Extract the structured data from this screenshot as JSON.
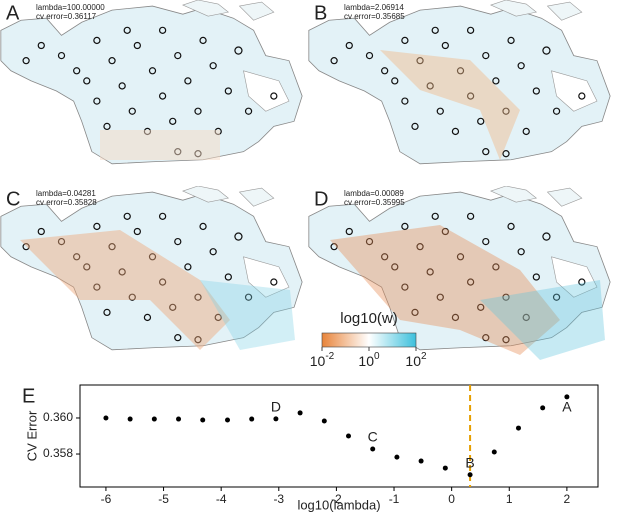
{
  "panels": [
    {
      "label": "A",
      "lambda_text": "lambda=100.00000",
      "cv_text": "cv error=0.36117"
    },
    {
      "label": "B",
      "lambda_text": "lambda=2.06914",
      "cv_text": "cv error=0.35685"
    },
    {
      "label": "C",
      "lambda_text": "lambda=0.04281",
      "cv_text": "cv error=0.35828"
    },
    {
      "label": "D",
      "lambda_text": "lambda=0.00089",
      "cv_text": "cv error=0.35995"
    }
  ],
  "colorbar": {
    "title": "log10(w)",
    "ticks": [
      {
        "base": "10",
        "exp": "-2"
      },
      {
        "base": "10",
        "exp": "0"
      },
      {
        "base": "10",
        "exp": "2"
      }
    ],
    "colors": [
      "#e8843a",
      "#ffffff",
      "#3cc0dc"
    ]
  },
  "chart_data": {
    "type": "scatter",
    "panel_label": "E",
    "x_label": "log10(lambda)",
    "y_label": "CV Error",
    "x": [
      -6,
      -5.58,
      -5.16,
      -4.74,
      -4.32,
      -3.89,
      -3.47,
      -3.05,
      -2.63,
      -2.21,
      -1.79,
      -1.37,
      -0.95,
      -0.53,
      -0.11,
      0.32,
      0.74,
      1.16,
      1.58,
      2
    ],
    "values": [
      0.36,
      0.35994,
      0.35994,
      0.35994,
      0.35989,
      0.35989,
      0.35994,
      0.35995,
      0.36028,
      0.35983,
      0.359,
      0.35828,
      0.35783,
      0.35761,
      0.35722,
      0.35685,
      0.35811,
      0.35944,
      0.36056,
      0.36117
    ],
    "point_labels": [
      null,
      null,
      null,
      null,
      null,
      null,
      null,
      "D",
      null,
      null,
      null,
      "C",
      null,
      null,
      null,
      "B",
      null,
      null,
      null,
      "A"
    ],
    "color": "#000000",
    "xlim": [
      -6.45,
      2.54
    ],
    "ylim": [
      0.35617,
      0.36183
    ],
    "xticks": [
      -6,
      -5,
      -4,
      -3,
      -2,
      -1,
      0,
      1,
      2
    ],
    "yticks": [
      0.358,
      {
        "value": 0.36,
        "label": "0.360"
      }
    ],
    "vline": {
      "x": 0.32,
      "color": "#e69f00"
    }
  }
}
